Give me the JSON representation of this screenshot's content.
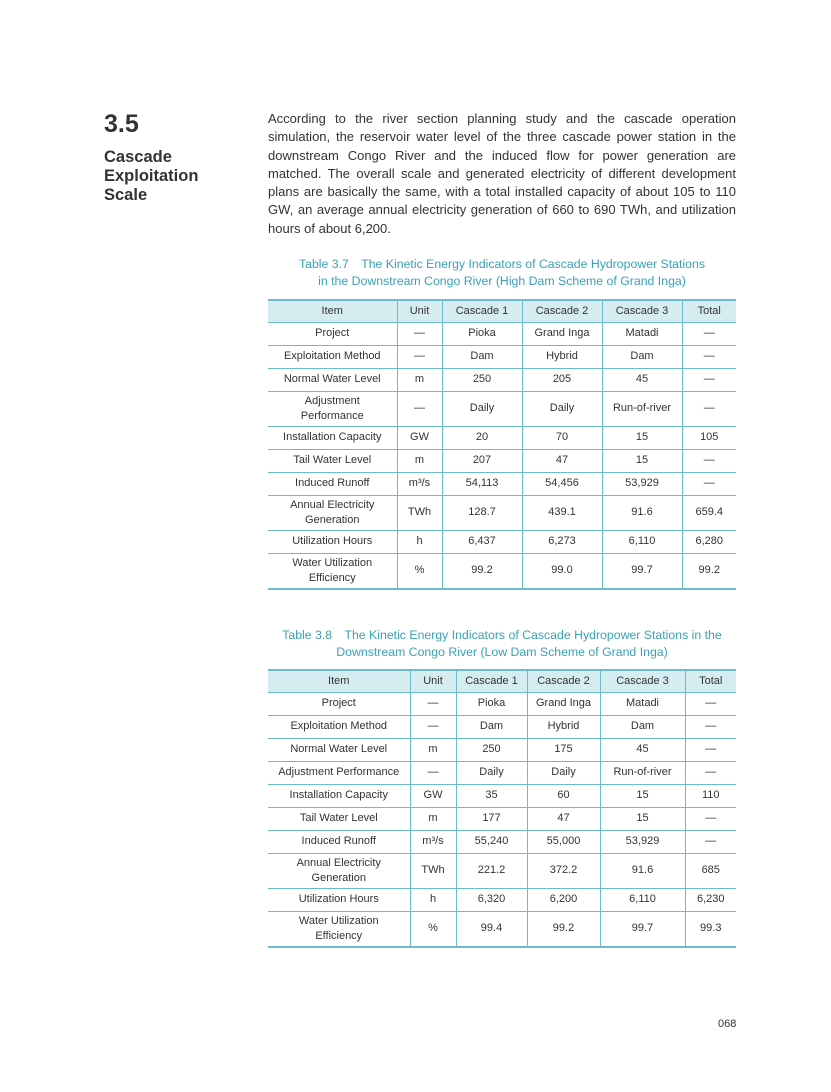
{
  "section": {
    "number": "3.5",
    "title": "Cascade Exploitation Scale"
  },
  "paragraph": "According to the river section planning study and the cascade operation simulation, the reservoir water level of the three cascade power station in the downstream Congo River and the induced flow for power generation are matched. The overall scale and generated electricity of different development plans are basically the same, with a total installed capacity of about 105 to 110 GW, an average annual electricity generation of 660 to 690 TWh, and utilization hours of about 6,200.",
  "tables": [
    {
      "caption_line1": "Table 3.7　The Kinetic Energy Indicators of Cascade Hydropower Stations",
      "caption_line2": "in the Downstream Congo River (High Dam Scheme of Grand Inga)",
      "headers": [
        "Item",
        "Unit",
        "Cascade 1",
        "Cascade 2",
        "Cascade 3",
        "Total"
      ],
      "rows": [
        [
          "Project",
          "—",
          "Pioka",
          "Grand Inga",
          "Matadi",
          "—"
        ],
        [
          "Exploitation Method",
          "—",
          "Dam",
          "Hybrid",
          "Dam",
          "—"
        ],
        [
          "Normal Water Level",
          "m",
          "250",
          "205",
          "45",
          "—"
        ],
        [
          "Adjustment Performance",
          "—",
          "Daily",
          "Daily",
          "Run-of-river",
          "—"
        ],
        [
          "Installation Capacity",
          "GW",
          "20",
          "70",
          "15",
          "105"
        ],
        [
          "Tail Water Level",
          "m",
          "207",
          "47",
          "15",
          "—"
        ],
        [
          "Induced Runoff",
          "m³/s",
          "54,113",
          "54,456",
          "53,929",
          "—"
        ],
        [
          "Annual Electricity Generation",
          "TWh",
          "128.7",
          "439.1",
          "91.6",
          "659.4"
        ],
        [
          "Utilization Hours",
          "h",
          "6,437",
          "6,273",
          "6,110",
          "6,280"
        ],
        [
          "Water Utilization Efficiency",
          "%",
          "99.2",
          "99.0",
          "99.7",
          "99.2"
        ]
      ]
    },
    {
      "caption_line1": "Table 3.8　The Kinetic Energy Indicators of Cascade Hydropower Stations in the",
      "caption_line2": "Downstream Congo River (Low Dam Scheme of Grand Inga)",
      "headers": [
        "Item",
        "Unit",
        "Cascade 1",
        "Cascade 2",
        "Cascade 3",
        "Total"
      ],
      "rows": [
        [
          "Project",
          "—",
          "Pioka",
          "Grand Inga",
          "Matadi",
          "—"
        ],
        [
          "Exploitation Method",
          "—",
          "Dam",
          "Hybrid",
          "Dam",
          "—"
        ],
        [
          "Normal Water Level",
          "m",
          "250",
          "175",
          "45",
          "—"
        ],
        [
          "Adjustment Performance",
          "—",
          "Daily",
          "Daily",
          "Run-of-river",
          "—"
        ],
        [
          "Installation Capacity",
          "GW",
          "35",
          "60",
          "15",
          "110"
        ],
        [
          "Tail Water Level",
          "m",
          "177",
          "47",
          "15",
          "—"
        ],
        [
          "Induced Runoff",
          "m³/s",
          "55,240",
          "55,000",
          "53,929",
          "—"
        ],
        [
          "Annual Electricity Generation",
          "TWh",
          "221.2",
          "372.2",
          "91.6",
          "685"
        ],
        [
          "Utilization Hours",
          "h",
          "6,320",
          "6,200",
          "6,110",
          "6,230"
        ],
        [
          "Water Utilization Efficiency",
          "%",
          "99.4",
          "99.2",
          "99.7",
          "99.3"
        ]
      ]
    }
  ],
  "page_number": "068"
}
